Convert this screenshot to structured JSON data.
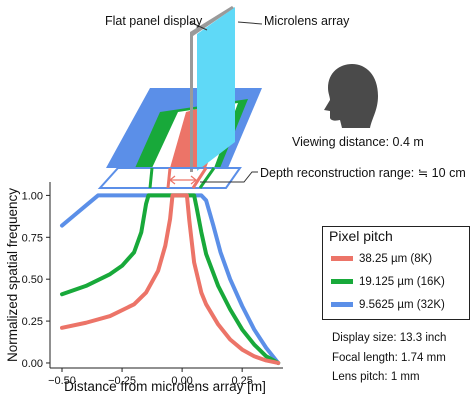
{
  "annotations": {
    "flat_panel": "Flat panel display",
    "microlens": "Microlens array",
    "viewing_distance": "Viewing distance: 0.4 m",
    "depth_range": "Depth reconstruction range: ≒ 10 cm"
  },
  "specs": {
    "display_size": "Display size: 13.3 inch",
    "focal_length": "Focal length: 1.74 mm",
    "lens_pitch": "Lens pitch: 1 mm"
  },
  "chart_data": {
    "type": "line",
    "title": "",
    "xlabel": "Distance from microlens array [m]",
    "ylabel": "Normalized spatial frequency",
    "xlim": [
      -0.55,
      0.42
    ],
    "ylim": [
      -0.03,
      1.08
    ],
    "xticks": [
      -0.5,
      -0.25,
      0.0,
      0.25
    ],
    "xtick_labels": [
      "−0.50",
      "−0.25",
      "0.00",
      "0.25"
    ],
    "yticks": [
      0.0,
      0.25,
      0.5,
      0.75,
      1.0
    ],
    "ytick_labels": [
      "0.00",
      "0.25",
      "0.50",
      "0.75",
      "1.00"
    ],
    "grid": false,
    "legend": {
      "title": "Pixel pitch",
      "position": "right"
    },
    "series": [
      {
        "name": "9.5625 µm (32K)",
        "color": "#5b8fe8",
        "x": [
          -0.5,
          -0.45,
          -0.4,
          -0.35,
          -0.33,
          0.08,
          0.1,
          0.13,
          0.16,
          0.2,
          0.25,
          0.3,
          0.35,
          0.4
        ],
        "y": [
          0.82,
          0.88,
          0.94,
          1.0,
          1.0,
          1.0,
          0.97,
          0.82,
          0.66,
          0.5,
          0.34,
          0.2,
          0.09,
          0.0
        ]
      },
      {
        "name": "19.125 µm (16K)",
        "color": "#18a93a",
        "x": [
          -0.5,
          -0.4,
          -0.3,
          -0.25,
          -0.2,
          -0.17,
          -0.15,
          -0.14,
          0.05,
          0.06,
          0.08,
          0.1,
          0.15,
          0.2,
          0.25,
          0.3,
          0.35,
          0.4
        ],
        "y": [
          0.41,
          0.46,
          0.53,
          0.58,
          0.66,
          0.78,
          0.95,
          1.0,
          1.0,
          0.93,
          0.78,
          0.65,
          0.46,
          0.32,
          0.2,
          0.11,
          0.04,
          0.0
        ]
      },
      {
        "name": "38.25 µm (8K)",
        "color": "#ec7468",
        "x": [
          -0.5,
          -0.4,
          -0.3,
          -0.2,
          -0.15,
          -0.1,
          -0.07,
          -0.05,
          -0.04,
          0.02,
          0.03,
          0.05,
          0.08,
          0.1,
          0.15,
          0.2,
          0.25,
          0.3,
          0.35,
          0.4
        ],
        "y": [
          0.21,
          0.24,
          0.28,
          0.35,
          0.42,
          0.55,
          0.7,
          0.86,
          1.0,
          1.0,
          0.85,
          0.6,
          0.42,
          0.35,
          0.23,
          0.14,
          0.08,
          0.04,
          0.015,
          0.0
        ]
      }
    ]
  }
}
